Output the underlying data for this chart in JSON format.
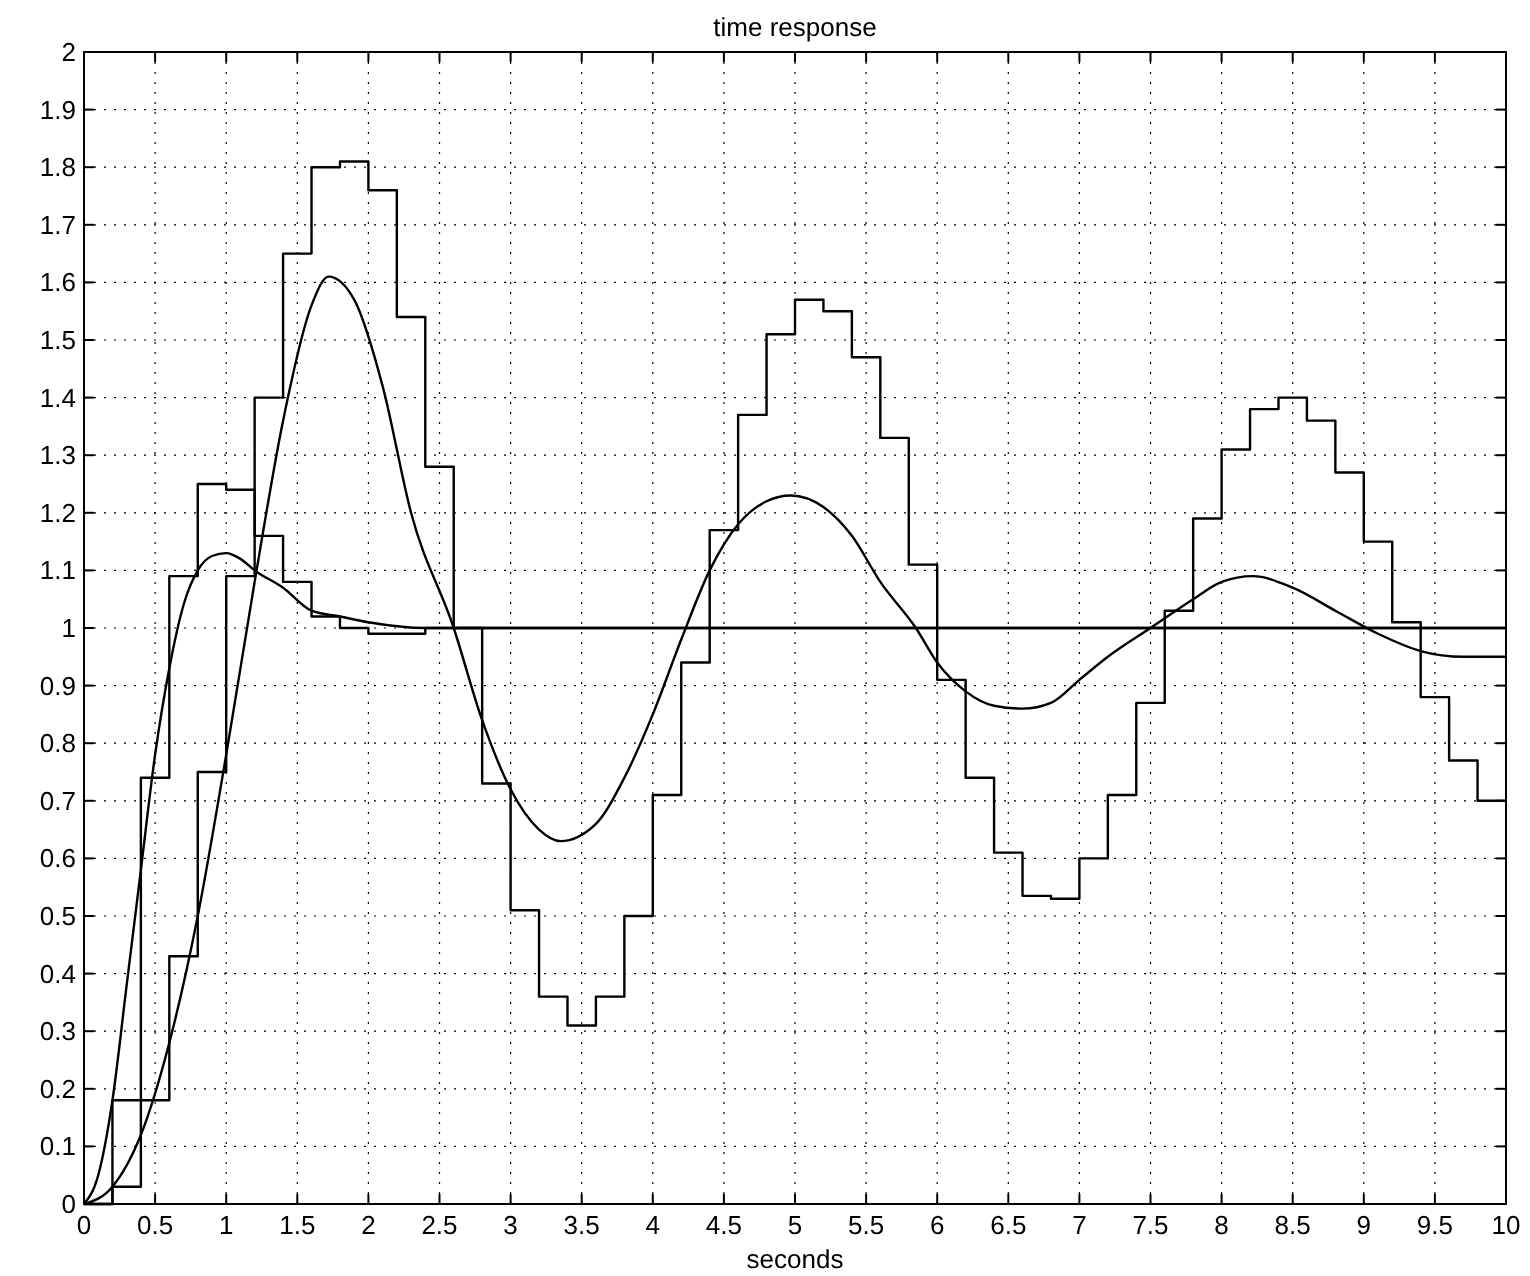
{
  "chart_data": {
    "type": "line",
    "title": "time response",
    "xlabel": "seconds",
    "xlim": [
      0,
      10
    ],
    "ylim": [
      0,
      2
    ],
    "xticks": [
      0,
      0.5,
      1,
      1.5,
      2,
      2.5,
      3,
      3.5,
      4,
      4.5,
      5,
      5.5,
      6,
      6.5,
      7,
      7.5,
      8,
      8.5,
      9,
      9.5,
      10
    ],
    "yticks": [
      0,
      0.1,
      0.2,
      0.3,
      0.4,
      0.5,
      0.6,
      0.7,
      0.8,
      0.9,
      1,
      1.1,
      1.2,
      1.3,
      1.4,
      1.5,
      1.6,
      1.7,
      1.8,
      1.9,
      2
    ],
    "grid": true,
    "line_style": "solid",
    "series": [
      {
        "color": "#000000",
        "x": [
          0,
          0.1,
          0.2,
          0.3,
          0.4,
          0.5,
          0.6,
          0.7,
          0.8,
          0.9,
          1,
          1.1,
          1.2,
          1.4,
          1.6,
          1.8,
          2,
          2.4,
          3,
          10
        ],
        "values": [
          0,
          0.05,
          0.18,
          0.38,
          0.58,
          0.78,
          0.93,
          1.04,
          1.1,
          1.125,
          1.13,
          1.12,
          1.1,
          1.07,
          1.03,
          1.02,
          1.01,
          1,
          1,
          1
        ]
      },
      {
        "color": "#000000",
        "x": [
          0,
          0.2,
          0.4,
          0.6,
          0.8,
          1,
          1.2,
          1.4,
          1.6,
          1.72,
          1.9,
          2.1,
          2.3,
          2.6,
          2.8,
          3,
          3.2,
          3.35,
          3.6,
          3.8,
          4,
          4.2,
          4.4,
          4.6,
          4.8,
          4.97,
          5.2,
          5.4,
          5.6,
          5.85,
          6,
          6.2,
          6.4,
          6.6,
          6.8,
          7,
          7.2,
          7.5,
          7.8,
          8,
          8.22,
          8.5,
          8.8,
          9.1,
          9.4,
          9.7,
          10
        ],
        "values": [
          0,
          0.03,
          0.12,
          0.28,
          0.5,
          0.78,
          1.08,
          1.36,
          1.56,
          1.61,
          1.57,
          1.42,
          1.2,
          1,
          0.84,
          0.72,
          0.65,
          0.63,
          0.66,
          0.74,
          0.85,
          0.98,
          1.1,
          1.18,
          1.22,
          1.23,
          1.21,
          1.16,
          1.08,
          1,
          0.94,
          0.89,
          0.865,
          0.86,
          0.87,
          0.91,
          0.95,
          1,
          1.05,
          1.08,
          1.09,
          1.07,
          1.03,
          0.99,
          0.96,
          0.95,
          0.95
        ]
      },
      {
        "type": "step",
        "color": "#000000",
        "x": [
          0,
          0.2,
          0.4,
          0.6,
          0.8,
          1,
          1.2,
          1.4,
          1.6,
          1.8,
          2,
          2.2,
          2.4,
          2.6,
          2.8,
          3,
          3.2,
          3.4,
          3.6,
          3.8,
          4,
          4.2,
          4.4,
          4.6,
          4.8,
          5,
          5.2,
          5.4,
          5.6,
          5.8,
          6,
          6.2,
          6.4,
          6.6,
          6.8,
          7,
          7.2,
          7.4,
          7.6,
          7.8,
          8,
          8.2,
          8.4,
          8.6,
          8.8,
          9,
          9.2,
          9.4,
          9.6,
          9.8,
          10
        ],
        "values": [
          0,
          0.18,
          0.74,
          1.09,
          1.25,
          1.24,
          1.16,
          1.08,
          1.02,
          1,
          0.99,
          0.99,
          1,
          1,
          1,
          1,
          1,
          1,
          1,
          1,
          1,
          1,
          1,
          1,
          1,
          1,
          1,
          1,
          1,
          1,
          1,
          1,
          1,
          1,
          1,
          1,
          1,
          1,
          1,
          1,
          1,
          1,
          1,
          1,
          1,
          1,
          1,
          1,
          1,
          1,
          1
        ]
      },
      {
        "type": "step",
        "color": "#000000",
        "x": [
          0,
          0.2,
          0.4,
          0.6,
          0.8,
          1,
          1.2,
          1.4,
          1.6,
          1.8,
          2,
          2.2,
          2.4,
          2.6,
          2.8,
          3,
          3.2,
          3.4,
          3.6,
          3.8,
          4,
          4.2,
          4.4,
          4.6,
          4.8,
          5,
          5.2,
          5.4,
          5.6,
          5.8,
          6,
          6.2,
          6.4,
          6.6,
          6.8,
          7,
          7.2,
          7.4,
          7.6,
          7.8,
          8,
          8.2,
          8.4,
          8.6,
          8.8,
          9,
          9.2,
          9.4,
          9.6,
          9.8,
          10
        ],
        "values": [
          0,
          0.03,
          0.18,
          0.43,
          0.75,
          1.09,
          1.4,
          1.65,
          1.8,
          1.81,
          1.76,
          1.54,
          1.28,
          1,
          0.73,
          0.51,
          0.36,
          0.31,
          0.36,
          0.5,
          0.71,
          0.94,
          1.17,
          1.37,
          1.51,
          1.57,
          1.55,
          1.47,
          1.33,
          1.11,
          0.91,
          0.74,
          0.61,
          0.535,
          0.53,
          0.6,
          0.71,
          0.87,
          1.03,
          1.19,
          1.31,
          1.38,
          1.4,
          1.36,
          1.27,
          1.15,
          1.01,
          0.88,
          0.77,
          0.7,
          0.7
        ]
      }
    ]
  }
}
